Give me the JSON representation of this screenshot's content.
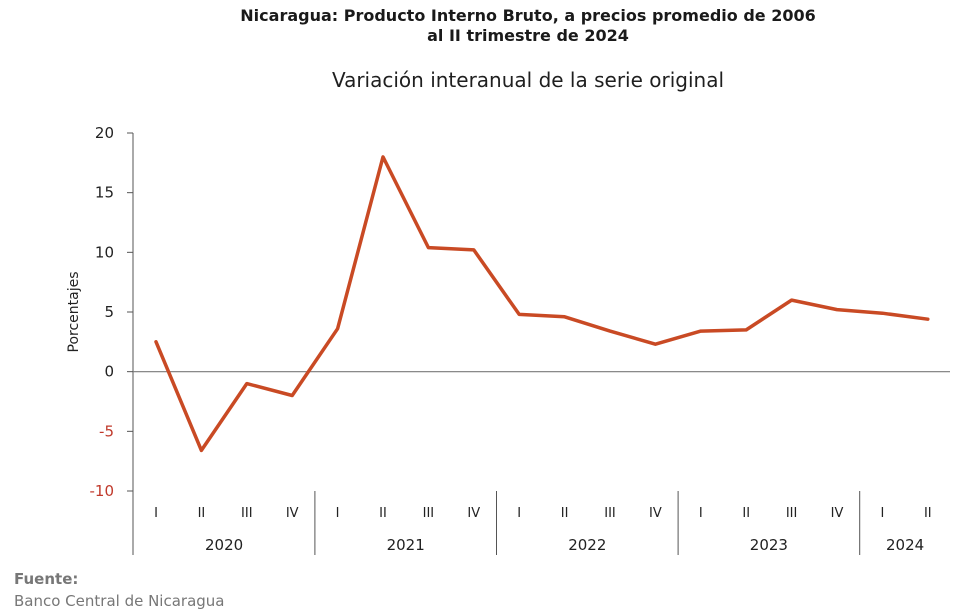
{
  "title_line1": "Nicaragua: Producto Interno Bruto, a precios promedio de 2006",
  "title_line2": "al II trimestre de 2024",
  "subtitle": "Variación interanual de la serie original",
  "source_label": "Fuente:",
  "source_text": "Banco Central de Nicaragua",
  "colors": {
    "line": "#c94a24",
    "negative_tick": "#c0392b",
    "axis": "#555555"
  },
  "chart_data": {
    "type": "line",
    "title": "Nicaragua: Producto Interno Bruto, a precios promedio de 2006 al II trimestre de 2024",
    "subtitle": "Variación interanual de la serie original",
    "ylabel": "Porcentajes",
    "xlabel": "",
    "ylim": [
      -10,
      20
    ],
    "yticks": [
      20,
      15,
      10,
      5,
      0,
      -5,
      -10
    ],
    "grid": false,
    "years": [
      {
        "label": "2020",
        "quarters": [
          "I",
          "II",
          "III",
          "IV"
        ]
      },
      {
        "label": "2021",
        "quarters": [
          "I",
          "II",
          "III",
          "IV"
        ]
      },
      {
        "label": "2022",
        "quarters": [
          "I",
          "II",
          "III",
          "IV"
        ]
      },
      {
        "label": "2023",
        "quarters": [
          "I",
          "II",
          "III",
          "IV"
        ]
      },
      {
        "label": "2024",
        "quarters": [
          "I",
          "II"
        ]
      }
    ],
    "series": [
      {
        "values": [
          2.5,
          -6.6,
          -1.0,
          -2.0,
          3.6,
          18.0,
          10.4,
          10.2,
          4.8,
          4.6,
          3.4,
          2.3,
          3.4,
          3.5,
          6.0,
          5.2,
          4.9,
          4.4
        ]
      }
    ]
  }
}
